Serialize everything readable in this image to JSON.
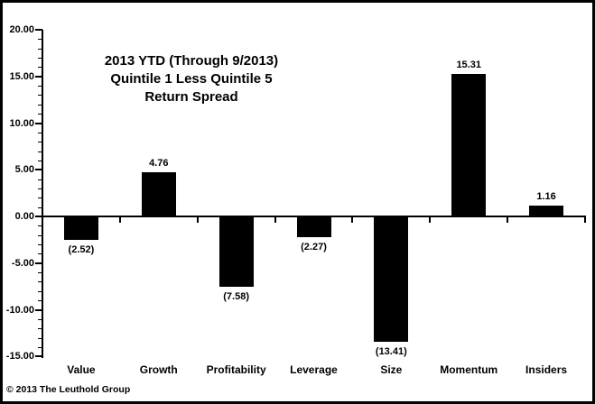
{
  "footer": {
    "copyright": "© 2013 The Leuthold Group"
  },
  "chart_data": {
    "type": "bar",
    "title": "2013 YTD (Through 9/2013) Quintile 1 Less Quintile 5 Return Spread",
    "title_lines": [
      "2013 YTD (Through 9/2013)",
      "Quintile 1 Less Quintile 5",
      "Return Spread"
    ],
    "categories": [
      "Value",
      "Growth",
      "Profitability",
      "Leverage",
      "Size",
      "Momentum",
      "Insiders"
    ],
    "values": [
      -2.52,
      4.76,
      -7.58,
      -2.27,
      -13.41,
      15.31,
      1.16
    ],
    "value_labels": [
      "(2.52)",
      "4.76",
      "(7.58)",
      "(2.27)",
      "(13.41)",
      "15.31",
      "1.16"
    ],
    "xlabel": "",
    "ylabel": "",
    "y_axis": {
      "min": -15,
      "max": 20,
      "major_step": 5,
      "minor_step": 1,
      "ticks": [
        {
          "value": 20,
          "label": "20.00"
        },
        {
          "value": 15,
          "label": "15.00"
        },
        {
          "value": 10,
          "label": "10.00"
        },
        {
          "value": 5,
          "label": "5.00"
        },
        {
          "value": 0,
          "label": "0.00"
        },
        {
          "value": -5,
          "label": "-5.00"
        },
        {
          "value": -10,
          "label": "-10.00"
        },
        {
          "value": -15,
          "label": "-15.00"
        }
      ]
    },
    "grid": false,
    "legend": false,
    "bar_color": "#000000",
    "axis_color": "#000000",
    "background_color": "#ffffff",
    "negative_label_style": "parentheses-below-bar",
    "positive_label_style": "above-bar"
  }
}
